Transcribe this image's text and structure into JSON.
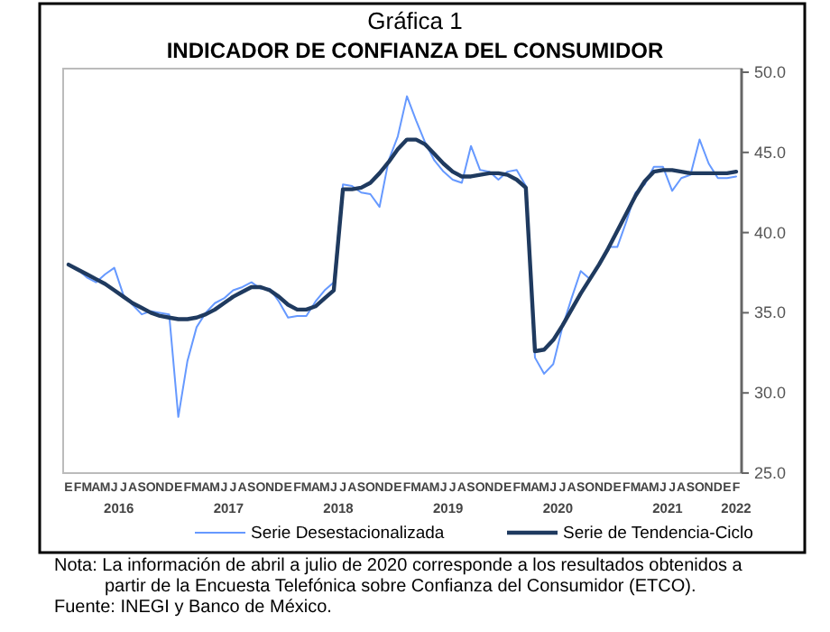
{
  "chart_data": {
    "type": "line",
    "title": "Gráfica 1",
    "subtitle": "INDICADOR DE CONFIANZA DEL CONSUMIDOR",
    "categories": [
      "E",
      "F",
      "M",
      "A",
      "M",
      "J",
      "J",
      "A",
      "S",
      "O",
      "N",
      "D",
      "E",
      "F",
      "M",
      "A",
      "M",
      "J",
      "J",
      "A",
      "S",
      "O",
      "N",
      "D",
      "E",
      "F",
      "M",
      "A",
      "M",
      "J",
      "J",
      "A",
      "S",
      "O",
      "N",
      "D",
      "E",
      "F",
      "M",
      "A",
      "M",
      "J",
      "J",
      "A",
      "S",
      "O",
      "N",
      "D",
      "E",
      "F",
      "M",
      "A",
      "M",
      "J",
      "J",
      "A",
      "S",
      "O",
      "N",
      "D",
      "E",
      "F",
      "M",
      "A",
      "M",
      "J",
      "J",
      "A",
      "S",
      "O",
      "N",
      "D",
      "E",
      "F"
    ],
    "series": [
      {
        "name": "Serie Desestacionalizada",
        "color": "#6699ff",
        "values": [
          38.0,
          37.7,
          37.2,
          36.9,
          37.4,
          37.8,
          36.1,
          35.5,
          34.9,
          35.1,
          35.0,
          34.9,
          28.5,
          32.0,
          34.1,
          35.0,
          35.6,
          35.9,
          36.4,
          36.6,
          36.9,
          36.5,
          36.5,
          35.7,
          34.7,
          34.8,
          34.8,
          35.7,
          36.4,
          36.9,
          43.0,
          42.9,
          42.5,
          42.4,
          41.6,
          44.5,
          46.0,
          48.5,
          47.0,
          45.6,
          44.5,
          43.8,
          43.3,
          43.1,
          45.4,
          43.9,
          43.8,
          43.3,
          43.8,
          43.9,
          42.9,
          32.2,
          31.2,
          31.8,
          34.1,
          35.9,
          37.6,
          37.1,
          38.0,
          39.1,
          39.1,
          40.7,
          42.5,
          43.0,
          44.1,
          44.1,
          42.6,
          43.4,
          43.6,
          45.8,
          44.3,
          43.4,
          43.4,
          43.5
        ]
      },
      {
        "name": "Serie de Tendencia-Ciclo",
        "color": "#1f3a5f",
        "values": [
          38.0,
          37.7,
          37.4,
          37.1,
          36.8,
          36.4,
          36.0,
          35.6,
          35.3,
          35.0,
          34.8,
          34.7,
          34.6,
          34.6,
          34.7,
          34.9,
          35.2,
          35.6,
          36.0,
          36.3,
          36.6,
          36.6,
          36.4,
          36.0,
          35.5,
          35.2,
          35.2,
          35.4,
          35.9,
          36.4,
          42.7,
          42.7,
          42.8,
          43.1,
          43.7,
          44.4,
          45.2,
          45.8,
          45.8,
          45.5,
          44.9,
          44.3,
          43.8,
          43.5,
          43.5,
          43.6,
          43.7,
          43.7,
          43.6,
          43.3,
          42.8,
          32.6,
          32.7,
          33.3,
          34.2,
          35.2,
          36.2,
          37.1,
          38.0,
          39.0,
          40.1,
          41.2,
          42.3,
          43.2,
          43.8,
          43.9,
          43.9,
          43.8,
          43.7,
          43.7,
          43.7,
          43.7,
          43.7,
          43.8
        ]
      }
    ],
    "ylim": [
      25,
      50
    ],
    "yticks": [
      {
        "value": 25,
        "label": "25.0"
      },
      {
        "value": 30,
        "label": "30.0"
      },
      {
        "value": 35,
        "label": "35.0"
      },
      {
        "value": 40,
        "label": "40.0"
      },
      {
        "value": 45,
        "label": "45.0"
      },
      {
        "value": 50,
        "label": "50.0"
      }
    ],
    "grid": false,
    "legend": "bottom",
    "marker": "none",
    "line_style": "solid",
    "annotations": [
      "2016",
      "2017",
      "2018",
      "2019",
      "2020",
      "2021",
      "2022",
      "Nota: La información de abril a julio de 2020 corresponde a los resultados obtenidos a partir de la Encuesta Telefónica sobre Confianza del Consumidor (ETCO).",
      "Fuente: INEGI y Banco de México."
    ]
  }
}
